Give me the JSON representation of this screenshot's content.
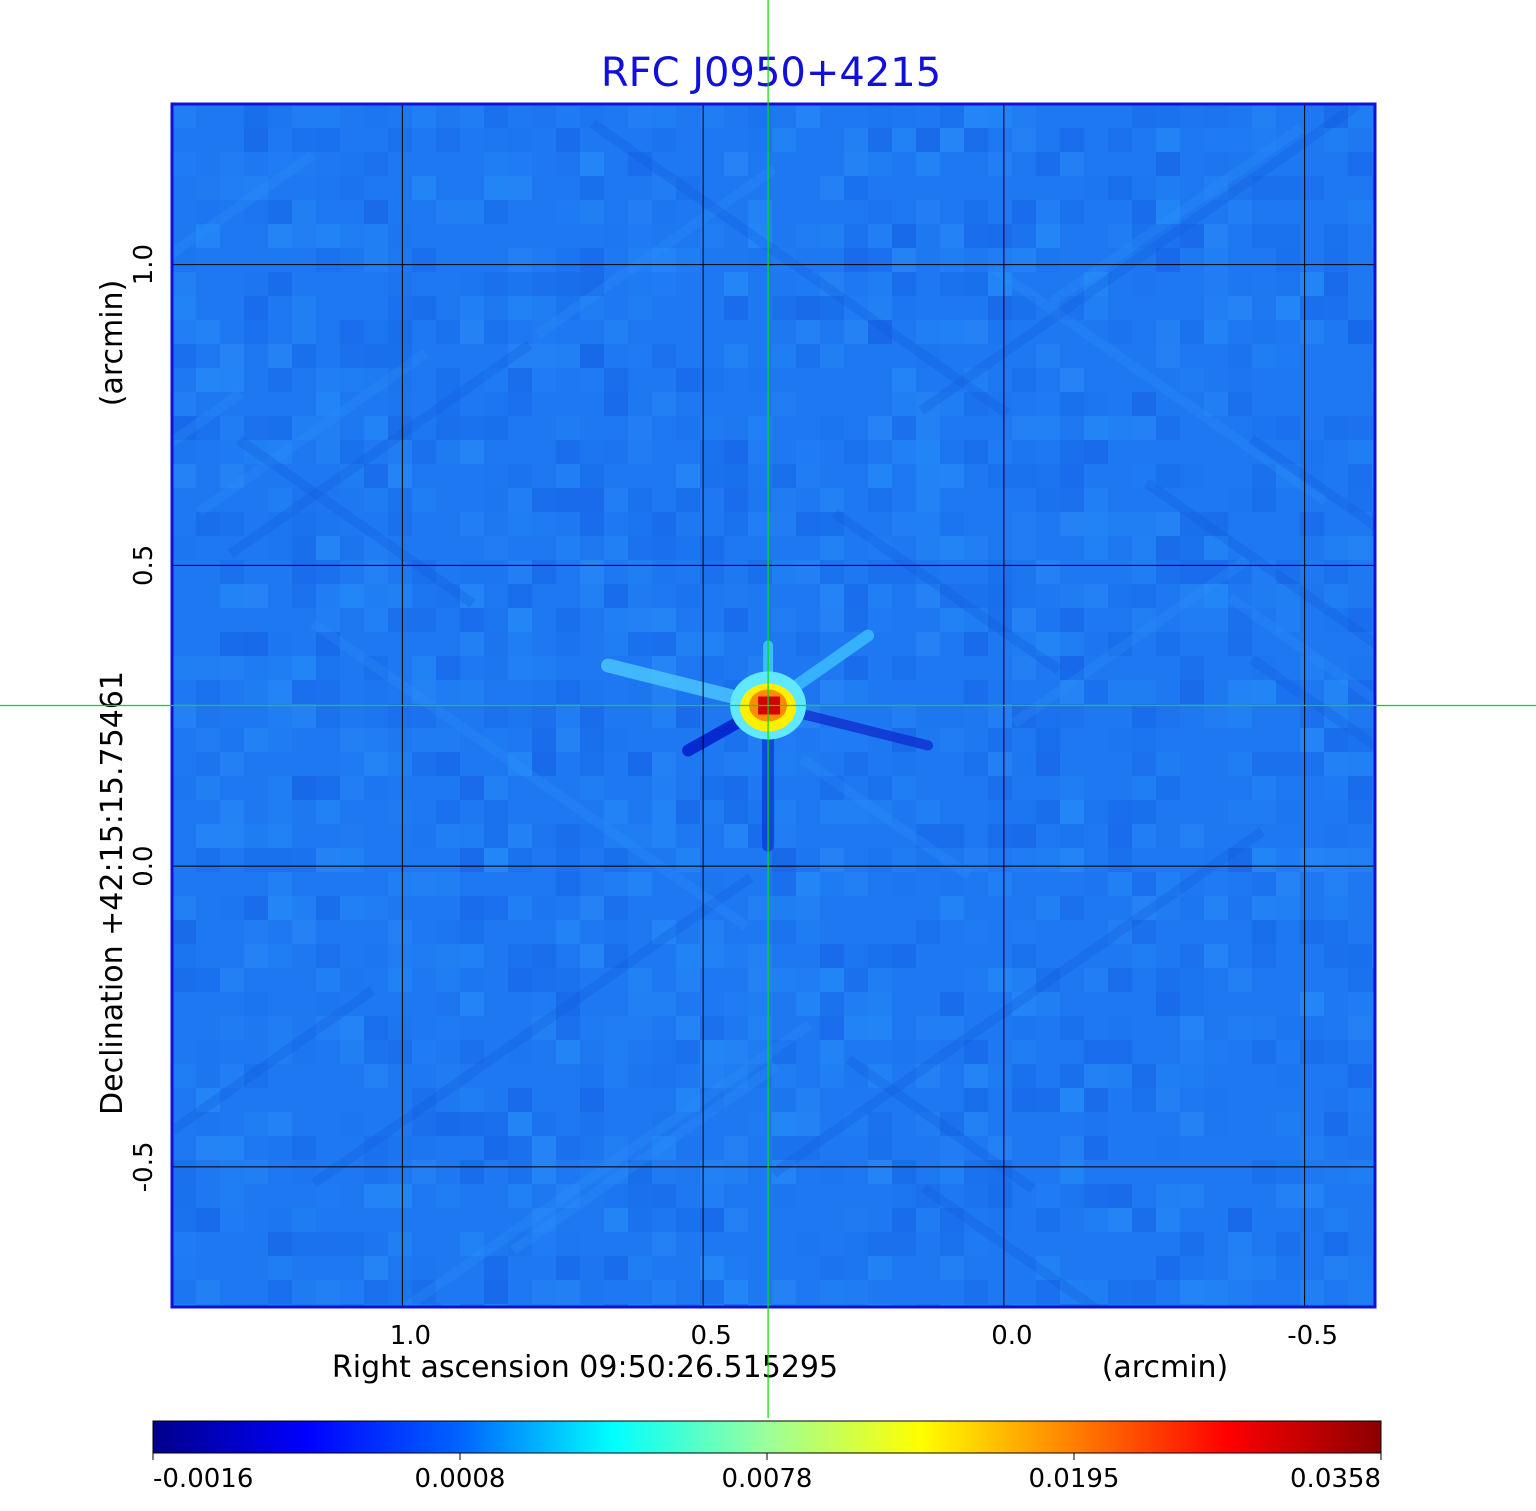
{
  "chart_data": {
    "type": "heatmap",
    "title": "RFC J0950+4215",
    "xlabel": "Right ascension  09:50:26.515295",
    "xunit": "(arcmin)",
    "ylabel": "Declination  +42:15:15.75461",
    "yunit": "(arcmin)",
    "x_ticks": [
      "1.0",
      "0.5",
      "0.0",
      "-0.5"
    ],
    "x_tick_values": [
      1.0,
      0.5,
      0.0,
      -0.5
    ],
    "y_ticks": [
      "1.0",
      "0.5",
      "0.0",
      "-0.5"
    ],
    "y_tick_values": [
      1.0,
      0.5,
      0.0,
      -0.5
    ],
    "xlim": [
      1.383,
      -0.617
    ],
    "ylim": [
      -0.733,
      1.267
    ],
    "grid": true,
    "crosshair": {
      "x": 0.392,
      "y": 0.267
    },
    "peak": {
      "x": 0.392,
      "y": 0.267,
      "value": 0.0358
    },
    "colorbar": {
      "ticks": [
        "-0.0016",
        "0.0008",
        "0.0078",
        "0.0195",
        "0.0358"
      ],
      "colormap": [
        "#00008b",
        "#0000ff",
        "#0064ff",
        "#00ffff",
        "#9bff9b",
        "#ffff00",
        "#ff7f00",
        "#ff0000",
        "#8b0000"
      ]
    },
    "colors": {
      "frame": "#1010d8",
      "background": "#1e78f2",
      "crosshair": "#00e000",
      "grid": "#000000"
    }
  }
}
